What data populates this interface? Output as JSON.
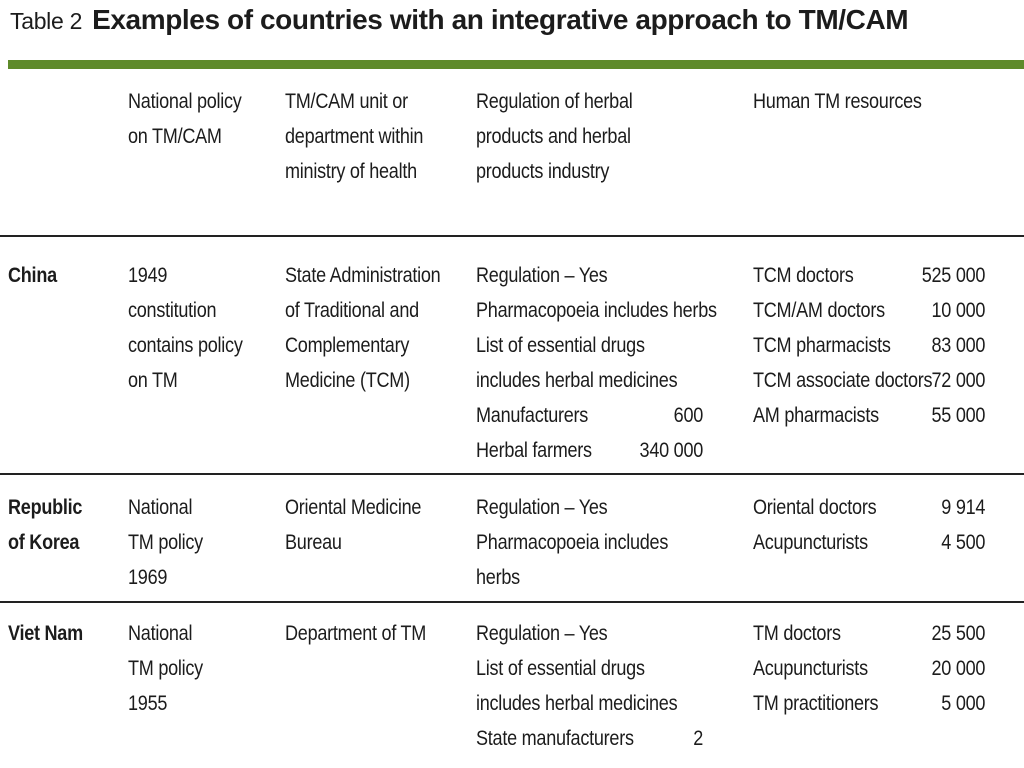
{
  "table": {
    "label": "Table 2",
    "title": "Examples of countries with an integrative approach to TM/CAM",
    "headers": {
      "policy": [
        "National policy",
        "on TM/CAM"
      ],
      "unit": [
        "TM/CAM unit or",
        "department within",
        "ministry of health"
      ],
      "regulation": [
        "Regulation of herbal",
        "products and herbal",
        "products industry"
      ],
      "resources": [
        "Human TM resources"
      ]
    },
    "rows": [
      {
        "country": [
          "China"
        ],
        "policy": [
          "1949",
          "constitution",
          "contains policy",
          "on TM"
        ],
        "unit": [
          "State Administration",
          "of Traditional and",
          "Complementary",
          "Medicine (TCM)"
        ],
        "regulation_lines": [
          "Regulation – Yes",
          "Pharmacopoeia includes herbs",
          "List of essential drugs",
          "includes herbal medicines"
        ],
        "regulation_counts": [
          {
            "label": "Manufacturers",
            "value": "600"
          },
          {
            "label": "Herbal farmers",
            "value": "340 000"
          }
        ],
        "resources": [
          {
            "label": "TCM doctors",
            "value": "525 000"
          },
          {
            "label": "TCM/AM doctors",
            "value": "10 000"
          },
          {
            "label": "TCM pharmacists",
            "value": "83 000"
          },
          {
            "label": "TCM associate doctors",
            "value": "72 000"
          },
          {
            "label": "AM pharmacists",
            "value": "55 000"
          }
        ]
      },
      {
        "country": [
          "Republic",
          "of Korea"
        ],
        "policy": [
          "National",
          "TM policy",
          "1969"
        ],
        "unit": [
          "Oriental Medicine",
          "Bureau"
        ],
        "regulation_lines": [
          "Regulation – Yes",
          "Pharmacopoeia includes",
          "herbs"
        ],
        "regulation_counts": [],
        "resources": [
          {
            "label": "Oriental doctors",
            "value": "9 914"
          },
          {
            "label": "Acupuncturists",
            "value": "4 500"
          }
        ]
      },
      {
        "country": [
          "Viet Nam"
        ],
        "policy": [
          "National",
          "TM policy",
          "1955"
        ],
        "unit": [
          "Department of TM"
        ],
        "regulation_lines": [
          "Regulation – Yes",
          "List of essential drugs",
          "includes herbal medicines"
        ],
        "regulation_counts": [
          {
            "label": "State manufacturers",
            "value": "2"
          }
        ],
        "resources": [
          {
            "label": "TM doctors",
            "value": "25 500"
          },
          {
            "label": "Acupuncturists",
            "value": "20 000"
          },
          {
            "label": "TM practitioners",
            "value": "5 000"
          }
        ]
      }
    ]
  }
}
